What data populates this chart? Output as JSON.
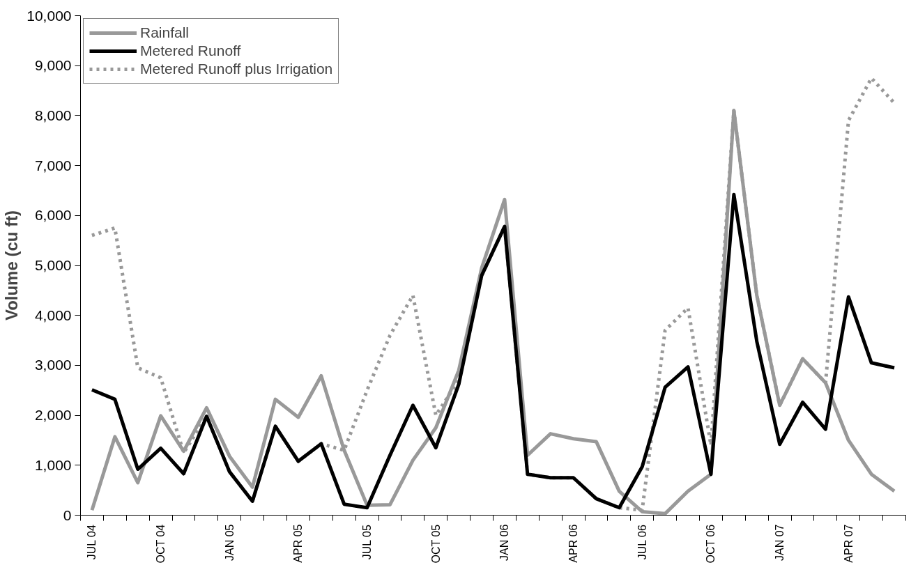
{
  "chart_data": {
    "type": "line",
    "ylabel": "Volume (cu ft)",
    "categories": [
      "JUL 04",
      null,
      null,
      "OCT 04",
      null,
      null,
      "JAN 05",
      null,
      null,
      "APR 05",
      null,
      null,
      "JUL 05",
      null,
      null,
      "OCT 05",
      null,
      null,
      "JAN 06",
      null,
      null,
      "APR 06",
      null,
      null,
      "JUL 06",
      null,
      null,
      "OCT 06",
      null,
      null,
      "JAN 07",
      null,
      null,
      "APR 07",
      null,
      null
    ],
    "series": [
      {
        "name": "Rainfall",
        "color": "#999999",
        "line_style": "solid",
        "values": [
          100,
          1570,
          650,
          1990,
          1280,
          2150,
          1180,
          560,
          2320,
          1960,
          2790,
          1300,
          200,
          210,
          1100,
          1750,
          2900,
          4950,
          6320,
          1200,
          1630,
          1530,
          1470,
          480,
          70,
          30,
          480,
          820,
          8100,
          4400,
          2200,
          3130,
          2650,
          1500,
          820,
          480
        ]
      },
      {
        "name": "Metered Runoff",
        "color": "#000000",
        "line_style": "solid",
        "values": [
          2510,
          2320,
          920,
          1340,
          830,
          1980,
          870,
          280,
          1780,
          1080,
          1430,
          220,
          150,
          1200,
          2200,
          1350,
          2620,
          4800,
          5780,
          820,
          750,
          750,
          330,
          150,
          970,
          2560,
          2970,
          820,
          6420,
          3480,
          1420,
          2260,
          1720,
          4370,
          3050,
          2950
        ]
      },
      {
        "name": "Metered Runoff plus Irrigation",
        "color": "#999999",
        "line_style": "dashed",
        "values": [
          5600,
          5750,
          2950,
          2750,
          1250,
          1980,
          870,
          280,
          1780,
          1080,
          1430,
          1300,
          2500,
          3600,
          4400,
          2000,
          2700,
          4800,
          5780,
          820,
          750,
          750,
          330,
          150,
          100,
          3700,
          4150,
          1400,
          8100,
          4400,
          2200,
          3130,
          2650,
          7900,
          8750,
          8250
        ]
      }
    ],
    "ylim": [
      0,
      10000
    ],
    "yticks": [
      {
        "value": 0,
        "label": "0"
      },
      {
        "value": 1000,
        "label": "1,000"
      },
      {
        "value": 2000,
        "label": "2,000"
      },
      {
        "value": 3000,
        "label": "3,000"
      },
      {
        "value": 4000,
        "label": "4,000"
      },
      {
        "value": 5000,
        "label": "5,000"
      },
      {
        "value": 6000,
        "label": "6,000"
      },
      {
        "value": 7000,
        "label": "7,000"
      },
      {
        "value": 8000,
        "label": "8,000"
      },
      {
        "value": 9000,
        "label": "9,000"
      },
      {
        "value": 10000,
        "label": "10,000"
      }
    ],
    "grid": false,
    "legend": "top left",
    "marker": "none"
  }
}
